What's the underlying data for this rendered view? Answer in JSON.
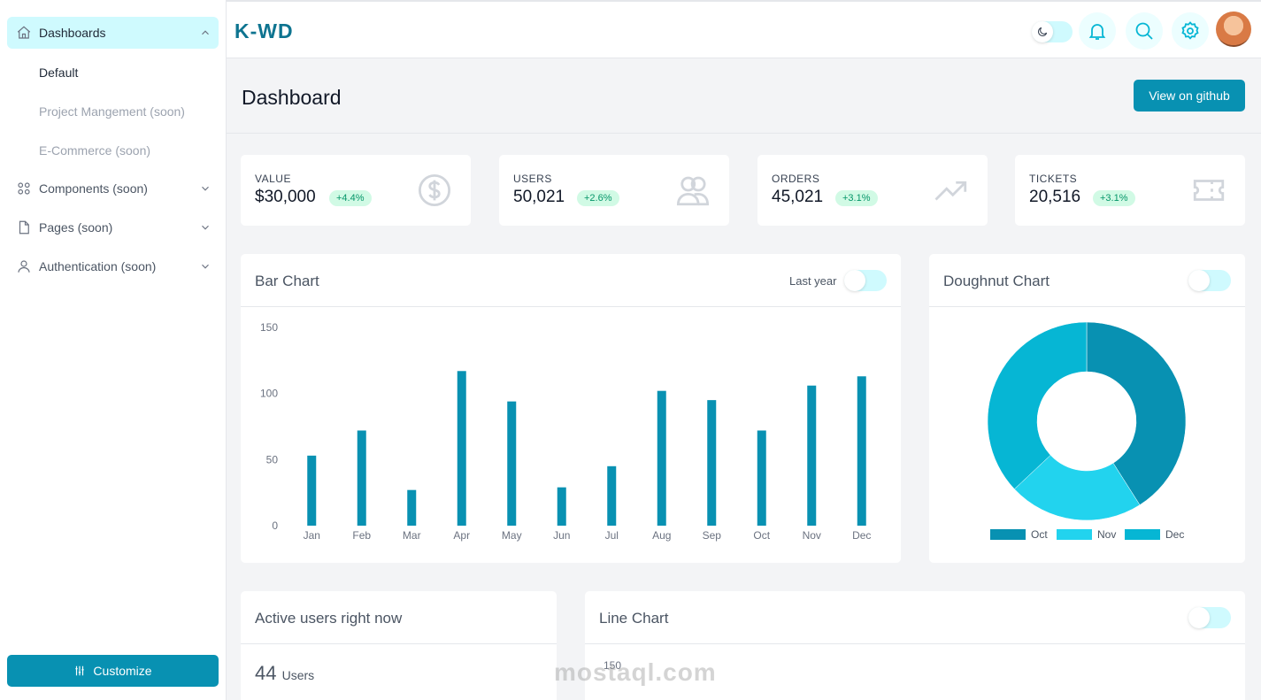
{
  "sidebar": {
    "dashboards_label": "Dashboards",
    "sub_items": [
      "Default",
      "Project Mangement (soon)",
      "E-Commerce (soon)"
    ],
    "components_label": "Components (soon)",
    "pages_label": "Pages (soon)",
    "auth_label": "Authentication (soon)",
    "customize_label": "Customize"
  },
  "header": {
    "brand": "K-WD",
    "icons": [
      "moon-icon",
      "bell-icon",
      "search-icon",
      "gear-icon"
    ]
  },
  "page": {
    "title": "Dashboard",
    "github_label": "View on github"
  },
  "stats": [
    {
      "label": "VALUE",
      "value": "$30,000",
      "change": "+4.4%",
      "icon": "dollar-icon"
    },
    {
      "label": "USERS",
      "value": "50,021",
      "change": "+2.6%",
      "icon": "users-icon"
    },
    {
      "label": "ORDERS",
      "value": "45,021",
      "change": "+3.1%",
      "icon": "trending-up-icon"
    },
    {
      "label": "TICKETS",
      "value": "20,516",
      "change": "+3.1%",
      "icon": "ticket-icon"
    }
  ],
  "bar_card": {
    "title": "Bar Chart",
    "toggle_label": "Last year"
  },
  "doughnut_card": {
    "title": "Doughnut Chart"
  },
  "active_card": {
    "title": "Active users right now",
    "count": "44",
    "unit": "Users"
  },
  "line_card": {
    "title": "Line Chart",
    "tick": "150"
  },
  "colors": {
    "accent": "#0891b2",
    "bar": "#0891b2",
    "oct": "#0891b2",
    "nov": "#22d3ee",
    "dec": "#06b6d4"
  },
  "chart_data": [
    {
      "type": "bar",
      "categories": [
        "Jan",
        "Feb",
        "Mar",
        "Apr",
        "May",
        "Jun",
        "Jul",
        "Aug",
        "Sep",
        "Oct",
        "Nov",
        "Dec"
      ],
      "values": [
        53,
        72,
        27,
        117,
        94,
        29,
        45,
        102,
        95,
        72,
        106,
        113
      ],
      "yticks": [
        0,
        50,
        100,
        150
      ],
      "ylim": [
        0,
        150
      ],
      "title": "Bar Chart"
    },
    {
      "type": "pie",
      "categories": [
        "Oct",
        "Nov",
        "Dec"
      ],
      "values": [
        41,
        22,
        37
      ],
      "title": "Doughnut Chart",
      "legend": "bottom"
    }
  ],
  "watermark": "mostaql.com"
}
